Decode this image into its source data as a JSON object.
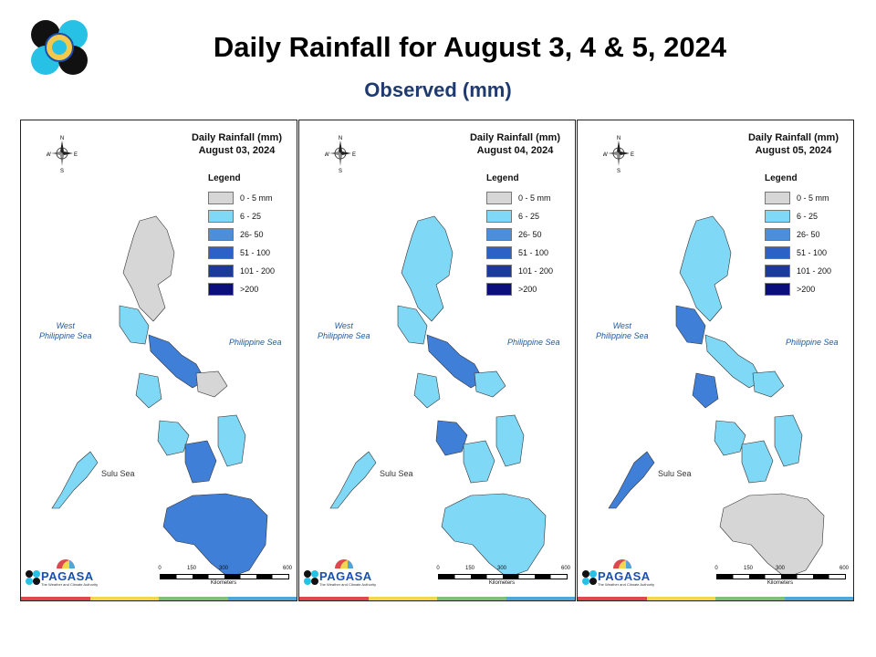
{
  "title": "Daily Rainfall for August 3, 4 & 5, 2024",
  "subtitle": "Observed (mm)",
  "legend": {
    "title": "Legend",
    "items": [
      {
        "label": "0 - 5 mm",
        "color": "#d6d6d6"
      },
      {
        "label": "6 - 25",
        "color": "#7fd8f5"
      },
      {
        "label": "26- 50",
        "color": "#4a8fdd"
      },
      {
        "label": "51 - 100",
        "color": "#2c62c7"
      },
      {
        "label": "101 - 200",
        "color": "#1b3a9e"
      },
      {
        "label": ">200",
        "color": "#0b0f7e"
      }
    ]
  },
  "panels": [
    {
      "heading": "Daily Rainfall (mm)",
      "date": "August 03, 2024",
      "rain_level_by_region": [
        "low",
        "mid",
        "high",
        "mid",
        "low",
        "mid",
        "high",
        "mid",
        "high"
      ]
    },
    {
      "heading": "Daily Rainfall (mm)",
      "date": "August 04, 2024",
      "rain_level_by_region": [
        "mid",
        "mid",
        "high",
        "mid",
        "mid",
        "high",
        "mid",
        "mid",
        "mid"
      ]
    },
    {
      "heading": "Daily Rainfall (mm)",
      "date": "August 05, 2024",
      "rain_level_by_region": [
        "mid",
        "high",
        "mid",
        "high",
        "mid",
        "mid",
        "mid",
        "mid",
        "low"
      ]
    }
  ],
  "seas": {
    "west": "West\nPhilippine Sea",
    "east": "Philippine Sea",
    "south": "Sulu Sea"
  },
  "compass": {
    "n": "N",
    "s": "S",
    "e": "E",
    "w": "W"
  },
  "scale": {
    "ticks": [
      "0",
      "150",
      "300",
      "600"
    ],
    "unit": "Kilometers"
  },
  "branding": {
    "name": "PAGASA",
    "tagline": "The Weather and Climate Authority",
    "icon": "pagasa-logo"
  },
  "stripe_colors": [
    "#e0474c",
    "#f2d64b",
    "#7fbf7a",
    "#4fa6d9"
  ]
}
